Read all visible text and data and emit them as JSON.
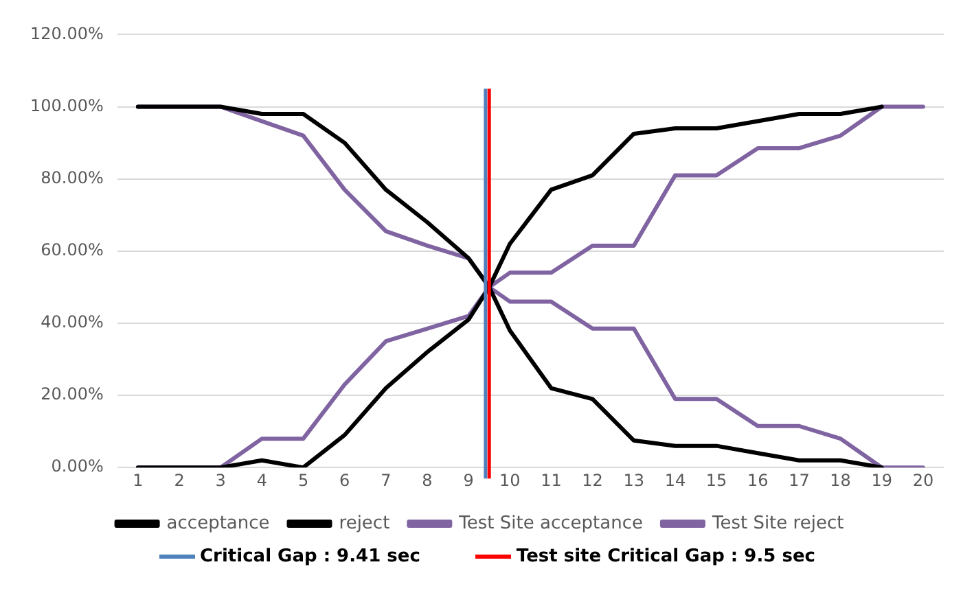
{
  "chart_data": {
    "type": "line",
    "x": [
      1,
      2,
      3,
      4,
      5,
      6,
      7,
      8,
      9,
      9.5,
      10,
      11,
      12,
      13,
      14,
      15,
      16,
      17,
      18,
      19,
      20
    ],
    "series": [
      {
        "name": "acceptance",
        "color": "#000000",
        "values": [
          0,
          0,
          0,
          2,
          0,
          9,
          22,
          32,
          41,
          50,
          62,
          77,
          81,
          92.5,
          94,
          94,
          96,
          98,
          98,
          100,
          null
        ]
      },
      {
        "name": "reject",
        "color": "#000000",
        "values": [
          100,
          100,
          100,
          98,
          98,
          90,
          77,
          68,
          58,
          50,
          38,
          22,
          19,
          7.5,
          6,
          6,
          4,
          2,
          2,
          0,
          null
        ]
      },
      {
        "name": "Test Site acceptance",
        "color": "#8064a2",
        "values": [
          0,
          0,
          0,
          8,
          8,
          23,
          35,
          38.5,
          42,
          50,
          54,
          54,
          61.5,
          61.5,
          81,
          81,
          88.5,
          88.5,
          92,
          100,
          100
        ]
      },
      {
        "name": "Test Site reject",
        "color": "#8064a2",
        "values": [
          100,
          100,
          100,
          96,
          92,
          77,
          65.5,
          61.5,
          58,
          50,
          46,
          46,
          38.5,
          38.5,
          19,
          19,
          11.5,
          11.5,
          8,
          0,
          0
        ]
      }
    ],
    "xlim": [
      0.5,
      20.5
    ],
    "xticks": [
      1,
      2,
      3,
      4,
      5,
      6,
      7,
      8,
      9,
      10,
      11,
      12,
      13,
      14,
      15,
      16,
      17,
      18,
      19,
      20
    ],
    "ylim": [
      0,
      120
    ],
    "yticks": [
      {
        "value": 0,
        "label": "0.00%"
      },
      {
        "value": 20,
        "label": "20.00%"
      },
      {
        "value": 40,
        "label": "40.00%"
      },
      {
        "value": 60,
        "label": "60.00%"
      },
      {
        "value": 80,
        "label": "80.00%"
      },
      {
        "value": 100,
        "label": "100.00%"
      },
      {
        "value": 120,
        "label": "120.00%"
      }
    ],
    "ref_lines": [
      {
        "axis": "x",
        "value": 9.41,
        "label": "Critical Gap : 9.41 sec",
        "color": "#4f81bd"
      },
      {
        "axis": "x",
        "value": 9.5,
        "label": "Test site Critical Gap : 9.5 sec",
        "color": "#ff0000"
      }
    ],
    "grid": "y",
    "legend": "bottom",
    "marker": "none",
    "line_style": "solid"
  }
}
